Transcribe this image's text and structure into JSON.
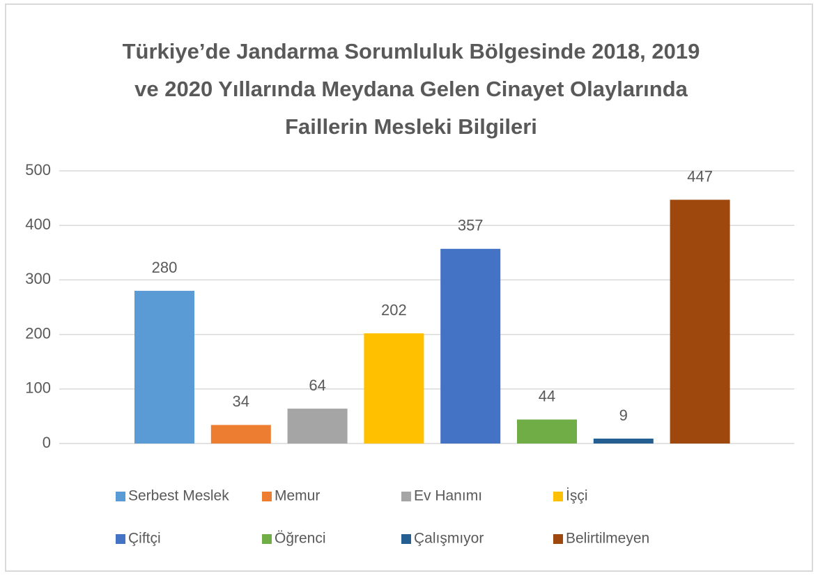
{
  "chart_data": {
    "type": "bar",
    "title": [
      "Türkiye’de Jandarma Sorumluluk Bölgesinde 2018, 2019",
      "ve 2020 Yıllarında Meydana Gelen Cinayet Olaylarında",
      "Faillerin Mesleki Bilgileri"
    ],
    "series": [
      {
        "name": "Serbest Meslek",
        "color": "#5b9bd5",
        "values": [
          280
        ]
      },
      {
        "name": "Memur",
        "color": "#ed7d31",
        "values": [
          34
        ]
      },
      {
        "name": "Ev Hanımı",
        "color": "#a5a5a5",
        "values": [
          64
        ]
      },
      {
        "name": "İşçi",
        "color": "#ffc000",
        "values": [
          202
        ]
      },
      {
        "name": "Çiftçi",
        "color": "#4472c4",
        "values": [
          357
        ]
      },
      {
        "name": "Öğrenci",
        "color": "#70ad47",
        "values": [
          44
        ]
      },
      {
        "name": "Çalışmıyor",
        "color": "#255e91",
        "values": [
          9
        ]
      },
      {
        "name": "Belirtilmeyen",
        "color": "#9e480e",
        "values": [
          447
        ]
      }
    ],
    "ylim": [
      0,
      500
    ],
    "yticks": [
      0,
      100,
      200,
      300,
      400,
      500
    ],
    "grid": true,
    "legend": "bottom"
  }
}
